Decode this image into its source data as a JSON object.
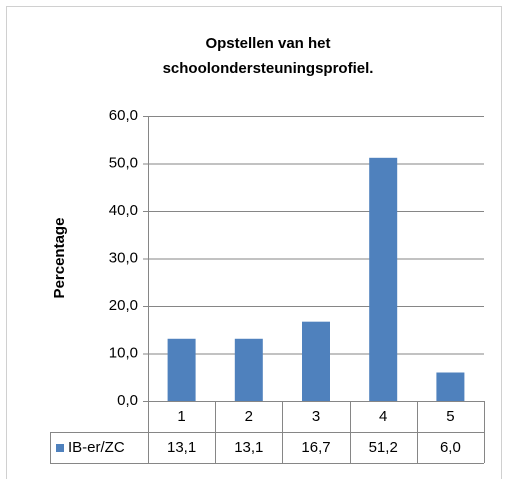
{
  "chart_data": {
    "type": "bar",
    "title": "Opstellen van het schoolondersteuningsprofiel.",
    "y_label": "Percentage",
    "categories": [
      "1",
      "2",
      "3",
      "4",
      "5"
    ],
    "series": [
      {
        "name": "IB-er/ZC",
        "color": "#4f81bd",
        "values": [
          13.1,
          13.1,
          16.7,
          51.2,
          6.0
        ],
        "value_labels": [
          "13,1",
          "13,1",
          "16,7",
          "51,2",
          "6,0"
        ]
      }
    ],
    "ylim": [
      0,
      60
    ],
    "yticks": [
      {
        "value": 0,
        "label": "0,0"
      },
      {
        "value": 10,
        "label": "10,0"
      },
      {
        "value": 20,
        "label": "20,0"
      },
      {
        "value": 30,
        "label": "30,0"
      },
      {
        "value": 40,
        "label": "40,0"
      },
      {
        "value": 50,
        "label": "50,0"
      },
      {
        "value": 60,
        "label": "60,0"
      }
    ],
    "grid": true,
    "data_table": true
  }
}
